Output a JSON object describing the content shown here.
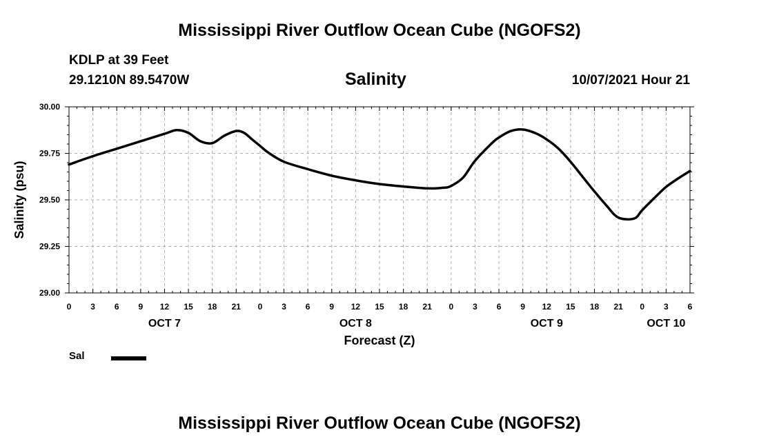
{
  "header": {
    "title": "Mississippi River Outflow Ocean Cube (NGOFS2)",
    "station": "KDLP at 39 Feet",
    "coords": "29.1210N  89.5470W",
    "parameter": "Salinity",
    "datetime": "10/07/2021 Hour 21"
  },
  "footer": {
    "title": "Mississippi River Outflow Ocean Cube (NGOFS2)"
  },
  "legend": {
    "label": "Sal",
    "color": "#000000"
  },
  "chart_data": {
    "type": "line",
    "title": "Salinity",
    "xlabel": "Forecast (Z)",
    "ylabel": "Salinity (psu)",
    "xlim": [
      0,
      78
    ],
    "ylim": [
      29.0,
      30.0
    ],
    "x_ticks": [
      0,
      3,
      6,
      9,
      12,
      15,
      18,
      21,
      24,
      27,
      30,
      33,
      36,
      39,
      42,
      45,
      48,
      51,
      54,
      57,
      60,
      63,
      66,
      69,
      72,
      75,
      78
    ],
    "x_tick_labels": [
      "0",
      "3",
      "6",
      "9",
      "12",
      "15",
      "18",
      "21",
      "0",
      "3",
      "6",
      "9",
      "12",
      "15",
      "18",
      "21",
      "0",
      "3",
      "6",
      "9",
      "12",
      "15",
      "18",
      "21",
      "0",
      "3",
      "6"
    ],
    "y_ticks": [
      29.0,
      29.25,
      29.5,
      29.75,
      30.0
    ],
    "y_tick_labels": [
      "29.00",
      "29.25",
      "29.50",
      "29.75",
      "30.00"
    ],
    "day_labels": [
      {
        "label": "OCT 7",
        "x": 12
      },
      {
        "label": "OCT 8",
        "x": 36
      },
      {
        "label": "OCT 9",
        "x": 60
      },
      {
        "label": "OCT 10",
        "x": 75
      }
    ],
    "grid": true,
    "series": [
      {
        "name": "Sal",
        "color": "#000000",
        "x": [
          0,
          3,
          6,
          9,
          12,
          13.5,
          15,
          16.5,
          18,
          19.5,
          21,
          22,
          23,
          24,
          25,
          27,
          30,
          33,
          36,
          39,
          42,
          45,
          47,
          48,
          49.5,
          51,
          53,
          54,
          55.5,
          57,
          58.5,
          60,
          61.5,
          63,
          64.5,
          66,
          67.5,
          69,
          71,
          72,
          74,
          75,
          76.5,
          78
        ],
        "y": [
          29.69,
          29.735,
          29.775,
          29.815,
          29.855,
          29.875,
          29.86,
          29.815,
          29.805,
          29.845,
          29.87,
          29.86,
          29.825,
          29.79,
          29.755,
          29.705,
          29.665,
          29.63,
          29.605,
          29.585,
          29.572,
          29.562,
          29.565,
          29.575,
          29.62,
          29.71,
          29.8,
          29.835,
          29.87,
          29.878,
          29.86,
          29.825,
          29.775,
          29.705,
          29.625,
          29.545,
          29.47,
          29.405,
          29.4,
          29.445,
          29.53,
          29.57,
          29.615,
          29.655
        ]
      }
    ]
  }
}
